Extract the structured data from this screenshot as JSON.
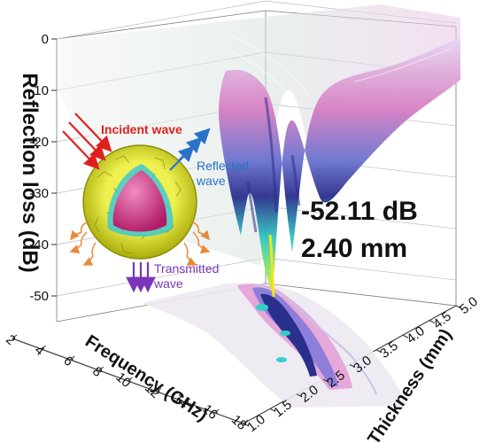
{
  "chart_data": {
    "type": "surface3d",
    "zlabel": "Reflection loss  (dB)",
    "xlabel": "Frequency (GHz)",
    "ylabel": "Thickness (mm)",
    "z_ticks": [
      "0",
      "-10",
      "-20",
      "-30",
      "-40",
      "-50"
    ],
    "x_ticks": [
      "2",
      "4",
      "6",
      "8",
      "10",
      "12",
      "14",
      "16",
      "18"
    ],
    "y_ticks": [
      "1.0",
      "1.5",
      "2.0",
      "2.5",
      "3.0",
      "3.5",
      "4.0",
      "4.5",
      "5.0"
    ],
    "zlim": [
      -55,
      0
    ],
    "xlim": [
      2,
      18
    ],
    "ylim": [
      1.0,
      5.0
    ],
    "min_annotation": {
      "value_text": "-52.11 dB",
      "thickness_text": "2.40 mm",
      "rl_db": -52.11,
      "thickness_mm": 2.4
    },
    "inset": {
      "incident": "Incident wave",
      "reflected_line1": "Reflected",
      "reflected_line2": "wave",
      "transmitted_line1": "Transmitted",
      "transmitted_line2": "wave"
    },
    "colors": {
      "incident": "#e0201c",
      "reflected": "#2a72c8",
      "transmitted": "#7a35b8",
      "shell": "#d8dc1e",
      "core": "#d02a7a"
    }
  }
}
